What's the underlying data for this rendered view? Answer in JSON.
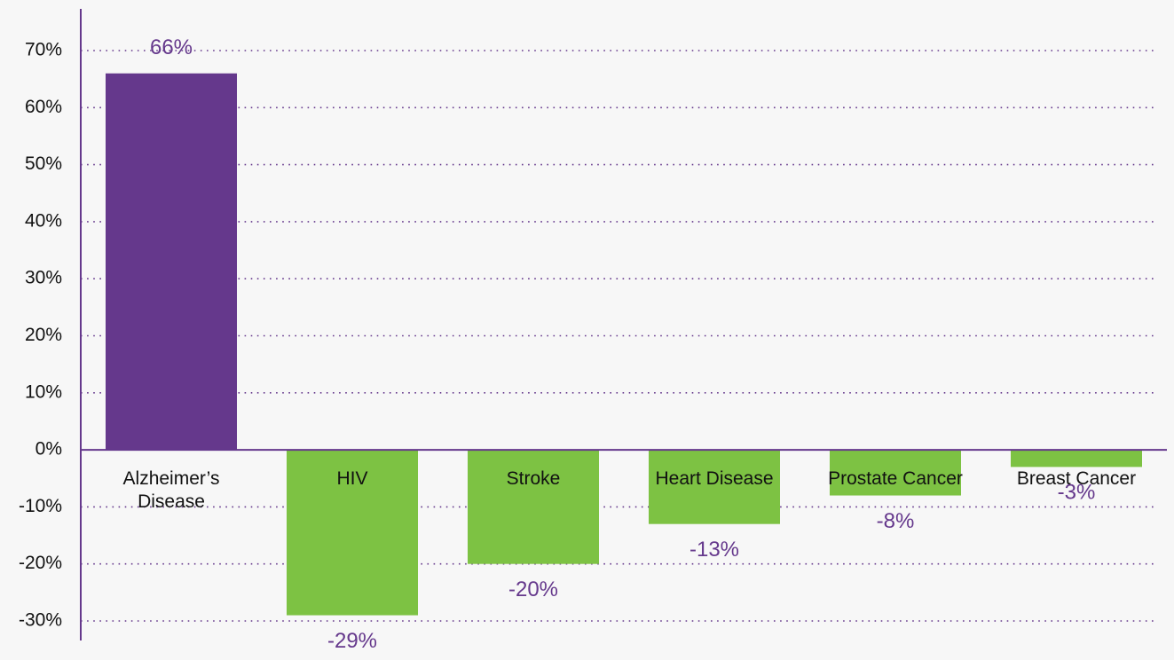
{
  "chart_data": {
    "type": "bar",
    "categories": [
      "Alzheimer’s Disease",
      "HIV",
      "Stroke",
      "Heart Disease",
      "Prostate Cancer",
      "Breast Cancer"
    ],
    "values": [
      66,
      -29,
      -20,
      -13,
      -8,
      -3
    ],
    "value_labels": [
      "66%",
      "-29%",
      "-20%",
      "-13%",
      "-8%",
      "-3%"
    ],
    "colors": [
      "#65388c",
      "#7dc243",
      "#7dc243",
      "#7dc243",
      "#7dc243",
      "#7dc243"
    ],
    "ylim": [
      -30,
      70
    ],
    "yticks": [
      {
        "value": -30,
        "label": "-30%"
      },
      {
        "value": -20,
        "label": "-20%"
      },
      {
        "value": -10,
        "label": "-10%"
      },
      {
        "value": 0,
        "label": "0%"
      },
      {
        "value": 10,
        "label": "10%"
      },
      {
        "value": 20,
        "label": "20%"
      },
      {
        "value": 30,
        "label": "30%"
      },
      {
        "value": 40,
        "label": "40%"
      },
      {
        "value": 50,
        "label": "50%"
      },
      {
        "value": 60,
        "label": "60%"
      },
      {
        "value": 70,
        "label": "70%"
      }
    ],
    "grid": true
  }
}
